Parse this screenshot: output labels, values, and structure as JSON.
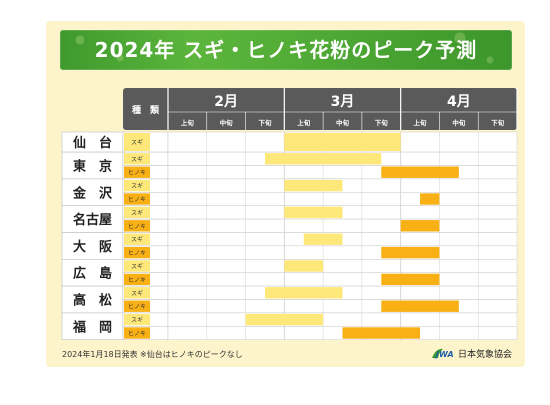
{
  "title": "2024年 スギ・ヒノキ花粉のピーク予測",
  "note_date": "2024年1月18日発表",
  "note_sendai": "※仙台はヒノキのピークなし",
  "organization": "日本気象協会",
  "chart_data": {
    "type": "gantt",
    "kind_header": "種　類",
    "months": [
      "2月",
      "3月",
      "4月"
    ],
    "periods": [
      "上旬",
      "中旬",
      "下旬"
    ],
    "pollen_types": [
      "スギ",
      "ヒノキ"
    ],
    "colors": {
      "スギ": "#ffe87a",
      "ヒノキ": "#f8b015",
      "header": "#5a5a5a",
      "label_bg": "#fcf2d2"
    },
    "cities": [
      {
        "name": "仙　台",
        "bars": [
          {
            "type": "スギ",
            "start": 3,
            "end": 6
          }
        ]
      },
      {
        "name": "東　京",
        "bars": [
          {
            "type": "スギ",
            "start": 2.5,
            "end": 5.5
          },
          {
            "type": "ヒノキ",
            "start": 5.5,
            "end": 7.5
          }
        ]
      },
      {
        "name": "金　沢",
        "bars": [
          {
            "type": "スギ",
            "start": 3,
            "end": 4.5
          },
          {
            "type": "ヒノキ",
            "start": 6.5,
            "end": 7
          }
        ]
      },
      {
        "name": "名古屋",
        "bars": [
          {
            "type": "スギ",
            "start": 3,
            "end": 4.5
          },
          {
            "type": "ヒノキ",
            "start": 6,
            "end": 7
          }
        ]
      },
      {
        "name": "大　阪",
        "bars": [
          {
            "type": "スギ",
            "start": 3.5,
            "end": 4.5
          },
          {
            "type": "ヒノキ",
            "start": 5.5,
            "end": 7
          }
        ]
      },
      {
        "name": "広　島",
        "bars": [
          {
            "type": "スギ",
            "start": 3,
            "end": 4
          },
          {
            "type": "ヒノキ",
            "start": 5.5,
            "end": 7
          }
        ]
      },
      {
        "name": "高　松",
        "bars": [
          {
            "type": "スギ",
            "start": 2.5,
            "end": 4.5
          },
          {
            "type": "ヒノキ",
            "start": 5.5,
            "end": 7.5
          }
        ]
      },
      {
        "name": "福　岡",
        "bars": [
          {
            "type": "スギ",
            "start": 2,
            "end": 4
          },
          {
            "type": "ヒノキ",
            "start": 4.5,
            "end": 6.5
          }
        ]
      }
    ]
  }
}
